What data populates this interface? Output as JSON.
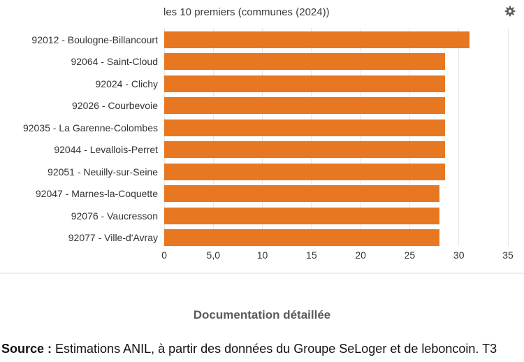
{
  "header": {
    "title": "les 10 premiers (communes (2024))"
  },
  "chart_data": {
    "type": "bar",
    "orientation": "horizontal",
    "title": "les 10 premiers (communes (2024))",
    "categories": [
      "92012 - Boulogne-Billancourt",
      "92064 - Saint-Cloud",
      "92024 - Clichy",
      "92026 - Courbevoie",
      "92035 - La Garenne-Colombes",
      "92044 - Levallois-Perret",
      "92051 - Neuilly-sur-Seine",
      "92047 - Marnes-la-Coquette",
      "92076 - Vaucresson",
      "92077 - Ville-d'Avray"
    ],
    "values": [
      31.1,
      28.6,
      28.6,
      28.6,
      28.6,
      28.6,
      28.6,
      28,
      28,
      28
    ],
    "xlabel": "",
    "ylabel": "",
    "xlim": [
      0,
      35
    ],
    "x_tick_values": [
      0,
      5,
      10,
      15,
      20,
      25,
      30,
      35
    ],
    "x_tick_labels": [
      "0",
      "5,0",
      "10",
      "15",
      "20",
      "25",
      "30",
      "35"
    ],
    "grid": true,
    "legend": "none",
    "bar_color": "#e87722"
  },
  "icons": {
    "settings": "gear-icon"
  },
  "colors": {
    "bar": "#e87722",
    "gridline": "#e7e7e7",
    "text": "#333333",
    "muted_text": "#5b5b5b",
    "icon": "#5a5a5a"
  },
  "footer": {
    "documentation_label": "Documentation détaillée",
    "source_prefix": "Source :",
    "source_text": " Estimations ANIL, à partir des données du Groupe SeLoger et de leboncoin. T3"
  }
}
